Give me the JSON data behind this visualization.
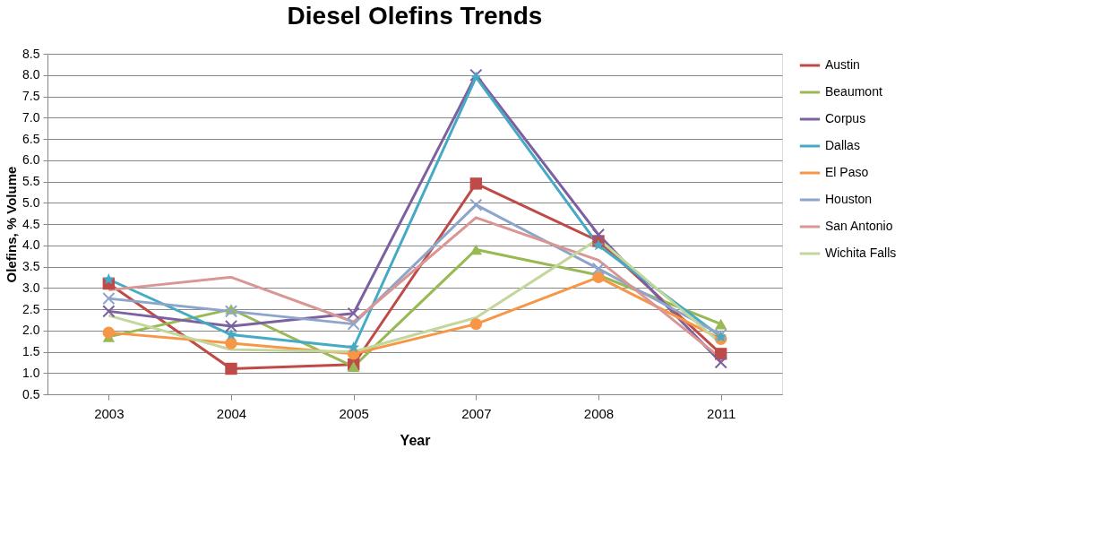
{
  "chart_data": {
    "type": "line",
    "title": "Diesel Olefins Trends",
    "xlabel": "Year",
    "ylabel": "Olefins, % Volume",
    "categories": [
      "2003",
      "2004",
      "2005",
      "2007",
      "2008",
      "2011"
    ],
    "ylim": [
      0.5,
      8.5
    ],
    "yticks": [
      0.5,
      {
        "value": 1,
        "label": "1.0"
      },
      1.5,
      {
        "value": 2,
        "label": "2.0"
      },
      2.5,
      {
        "value": 3,
        "label": "3.0"
      },
      3.5,
      {
        "value": 4,
        "label": "4.0"
      },
      4.5,
      {
        "value": 5,
        "label": "5.0"
      },
      5.5,
      {
        "value": 6,
        "label": "6.0"
      },
      6.5,
      {
        "value": 7,
        "label": "7.0"
      },
      7.5,
      {
        "value": 8,
        "label": "8.0"
      },
      8.5
    ],
    "grid": "y",
    "legend": "right",
    "line_style": "solid",
    "series": [
      {
        "name": "Austin",
        "color": "#be4b48",
        "marker": "square",
        "values": [
          3.1,
          1.1,
          1.2,
          5.45,
          4.1,
          1.45
        ]
      },
      {
        "name": "Beaumont",
        "color": "#98b954",
        "marker": "triangle",
        "values": [
          1.85,
          2.5,
          1.15,
          3.9,
          3.3,
          2.15
        ]
      },
      {
        "name": "Corpus",
        "color": "#7d60a0",
        "marker": "cross",
        "values": [
          2.45,
          2.1,
          2.4,
          8.0,
          4.25,
          1.25
        ]
      },
      {
        "name": "Dallas",
        "color": "#46aac5",
        "marker": "star",
        "values": [
          3.2,
          1.9,
          1.6,
          7.95,
          4.0,
          1.85
        ]
      },
      {
        "name": "El Paso",
        "color": "#f79646",
        "marker": "circle",
        "values": [
          1.95,
          1.7,
          1.45,
          2.15,
          3.25,
          1.8
        ]
      },
      {
        "name": "Houston",
        "color": "#8ea5cb",
        "marker": "cross",
        "values": [
          2.75,
          2.45,
          2.15,
          4.95,
          3.45,
          1.9
        ]
      },
      {
        "name": "San Antonio",
        "color": "#d99694",
        "marker": "none",
        "values": [
          2.95,
          3.25,
          2.2,
          4.65,
          3.65,
          1.35
        ]
      },
      {
        "name": "Wichita Falls",
        "color": "#c3d69b",
        "marker": "none",
        "values": [
          2.35,
          1.55,
          1.5,
          2.3,
          4.15,
          1.7
        ]
      }
    ]
  }
}
